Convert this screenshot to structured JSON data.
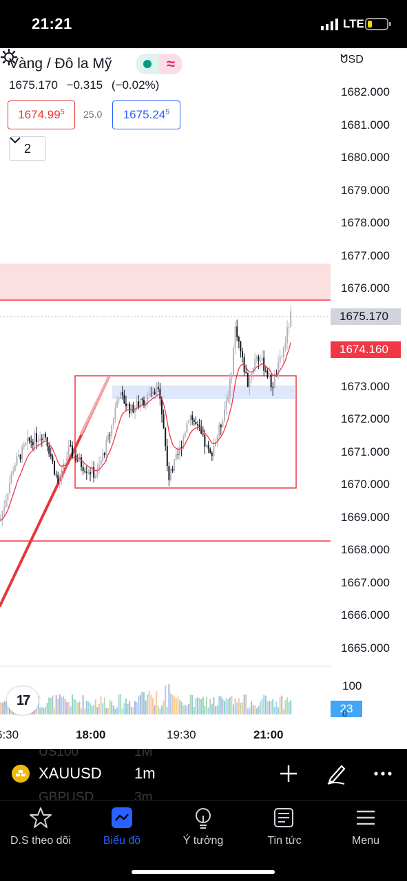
{
  "status_bar": {
    "time": "21:21",
    "network": "LTE"
  },
  "header": {
    "title": "Vàng / Đô la Mỹ",
    "last_price": "1675.170",
    "change": "−0.315",
    "change_pct": "(−0.02%)",
    "bid_main": "1674.99",
    "bid_sup": "5",
    "spread": "25.0",
    "ask_main": "1675.24",
    "ask_sup": "5",
    "indicator_count": "2",
    "currency": "USD"
  },
  "price_axis": [
    "1682.000",
    "1681.000",
    "1680.000",
    "1679.000",
    "1678.000",
    "1677.000",
    "1676.000",
    "1673.000",
    "1672.000",
    "1671.000",
    "1670.000",
    "1669.000",
    "1668.000",
    "1667.000",
    "1666.000",
    "1665.000"
  ],
  "current_price_tag": "1675.170",
  "bid_price_tag": "1674.160",
  "volume": {
    "axis_label": "100",
    "current": "23",
    "zero": "0"
  },
  "time_axis": [
    "6:30",
    "18:00",
    "19:30",
    "21:00"
  ],
  "symbol_bar": {
    "symbol": "XAUUSD",
    "timeframe": "1m",
    "ghost_above_symbol": "US100",
    "ghost_above_tf": "1M",
    "ghost_below_symbol": "GBPUSD",
    "ghost_below_tf": "3m"
  },
  "bottom_nav": [
    {
      "label": "D.S theo dõi",
      "icon": "star-icon"
    },
    {
      "label": "Biểu đồ",
      "icon": "chart-icon"
    },
    {
      "label": "Ý tưởng",
      "icon": "lightbulb-icon"
    },
    {
      "label": "Tin tức",
      "icon": "news-icon"
    },
    {
      "label": "Menu",
      "icon": "menu-icon"
    }
  ],
  "colors": {
    "up": "#b2b5be",
    "down": "#131722",
    "ma": "#f23645",
    "bid": "#e5383b",
    "ask": "#2962ff",
    "active_nav": "#2962ff"
  }
}
